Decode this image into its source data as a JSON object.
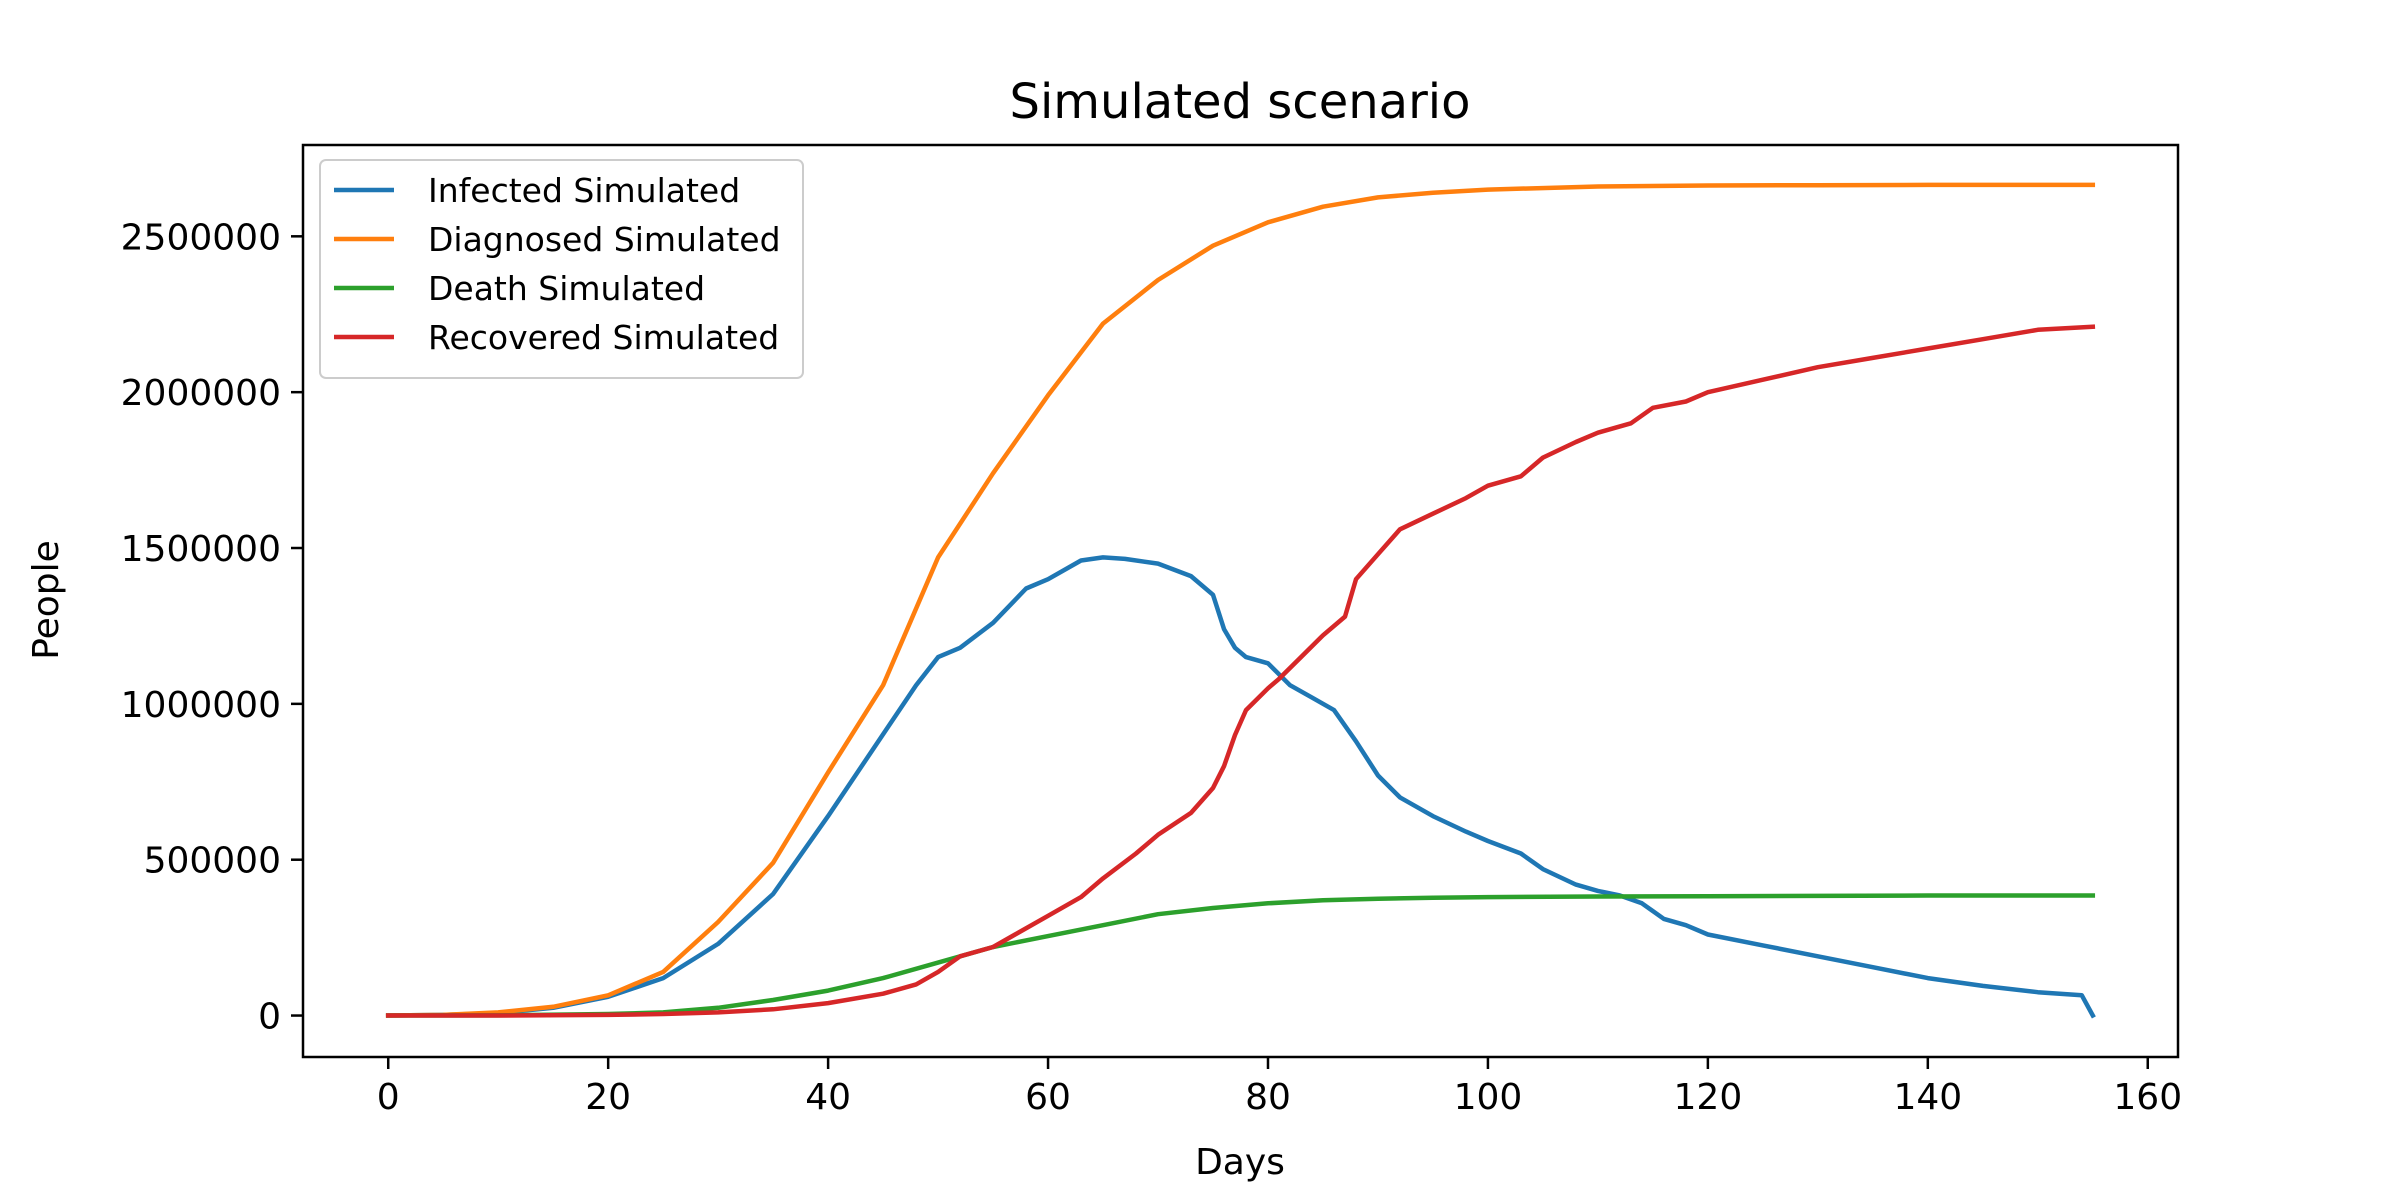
{
  "chart_data": {
    "type": "line",
    "title": "Simulated scenario",
    "xlabel": "Days",
    "ylabel": "People",
    "xlim": [
      -7.75,
      162.75
    ],
    "ylim": [
      -133000,
      2793000
    ],
    "xticks": [
      0,
      20,
      40,
      60,
      80,
      100,
      120,
      140,
      160
    ],
    "yticks": [
      0,
      500000,
      1000000,
      1500000,
      2000000,
      2500000
    ],
    "grid": false,
    "legend_position": "upper-left",
    "series": [
      {
        "name": "Infected Simulated",
        "color": "#1f77b4",
        "x": [
          0,
          5,
          10,
          15,
          20,
          25,
          30,
          35,
          40,
          44,
          48,
          50,
          52,
          55,
          58,
          60,
          63,
          65,
          67,
          70,
          73,
          75,
          76,
          77,
          78,
          80,
          82,
          84,
          86,
          88,
          90,
          92,
          95,
          98,
          100,
          103,
          105,
          108,
          110,
          112,
          114,
          116,
          118,
          120,
          125,
          130,
          135,
          140,
          145,
          150,
          154,
          155
        ],
        "values": [
          0,
          2000,
          8000,
          25000,
          60000,
          120000,
          230000,
          390000,
          640000,
          850000,
          1060000,
          1150000,
          1180000,
          1260000,
          1370000,
          1400000,
          1460000,
          1470000,
          1465000,
          1450000,
          1410000,
          1350000,
          1240000,
          1180000,
          1150000,
          1130000,
          1060000,
          1020000,
          980000,
          880000,
          770000,
          700000,
          640000,
          590000,
          560000,
          520000,
          470000,
          420000,
          400000,
          385000,
          360000,
          310000,
          290000,
          260000,
          225000,
          190000,
          155000,
          120000,
          95000,
          75000,
          65000,
          0
        ]
      },
      {
        "name": "Diagnosed Simulated",
        "color": "#ff7f0e",
        "x": [
          0,
          5,
          10,
          15,
          20,
          25,
          30,
          35,
          40,
          45,
          50,
          55,
          60,
          65,
          70,
          75,
          80,
          85,
          90,
          95,
          100,
          110,
          120,
          130,
          140,
          150,
          155
        ],
        "values": [
          0,
          2000,
          10000,
          28000,
          65000,
          140000,
          300000,
          490000,
          780000,
          1060000,
          1470000,
          1740000,
          1990000,
          2220000,
          2360000,
          2470000,
          2545000,
          2595000,
          2625000,
          2640000,
          2650000,
          2660000,
          2663000,
          2664000,
          2665000,
          2665000,
          2665000
        ]
      },
      {
        "name": "Death Simulated",
        "color": "#2ca02c",
        "x": [
          0,
          10,
          20,
          25,
          30,
          35,
          40,
          45,
          50,
          55,
          60,
          65,
          70,
          75,
          80,
          85,
          90,
          95,
          100,
          110,
          120,
          130,
          140,
          155
        ],
        "values": [
          0,
          500,
          5000,
          10000,
          25000,
          50000,
          80000,
          120000,
          170000,
          220000,
          255000,
          290000,
          325000,
          345000,
          360000,
          370000,
          375000,
          378000,
          380000,
          382000,
          383000,
          384000,
          385000,
          385000
        ]
      },
      {
        "name": "Recovered Simulated",
        "color": "#d62728",
        "x": [
          0,
          10,
          20,
          25,
          30,
          35,
          40,
          45,
          48,
          50,
          52,
          55,
          57,
          60,
          63,
          65,
          68,
          70,
          73,
          75,
          76,
          77,
          78,
          80,
          81,
          83,
          85,
          87,
          88,
          90,
          92,
          95,
          98,
          100,
          103,
          105,
          108,
          110,
          113,
          115,
          118,
          120,
          125,
          130,
          135,
          140,
          145,
          150,
          155
        ],
        "values": [
          0,
          0,
          2000,
          5000,
          10000,
          20000,
          40000,
          70000,
          100000,
          140000,
          190000,
          220000,
          260000,
          320000,
          380000,
          440000,
          520000,
          580000,
          650000,
          730000,
          800000,
          900000,
          980000,
          1050000,
          1080000,
          1150000,
          1220000,
          1280000,
          1400000,
          1480000,
          1560000,
          1610000,
          1660000,
          1700000,
          1730000,
          1790000,
          1840000,
          1870000,
          1900000,
          1950000,
          1970000,
          2000000,
          2040000,
          2080000,
          2110000,
          2140000,
          2170000,
          2200000,
          2210000
        ]
      }
    ]
  }
}
